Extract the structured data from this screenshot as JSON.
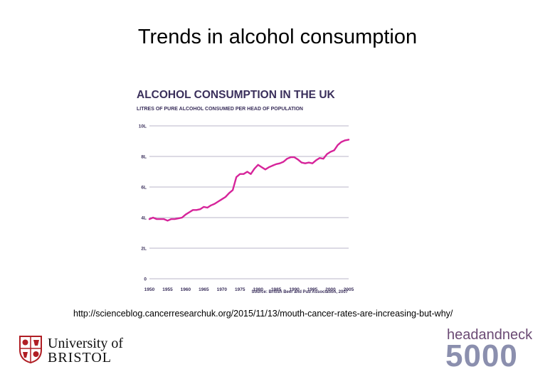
{
  "slide": {
    "title": "Trends in alcohol consumption",
    "url": "http://scienceblog.cancerresearchuk.org/2015/11/13/mouth-cancer-rates-are-increasing-but-why/"
  },
  "logos": {
    "bristol_line1": "University of",
    "bristol_line2": "BRISTOL",
    "hn_line1": "headandneck",
    "hn_line2": "5000"
  },
  "colors": {
    "line": "#d6249a",
    "title": "#3a2f5b",
    "grid": "#b8b4c8",
    "hn_purple": "#6b4a74",
    "hn_grey": "#8b8fae"
  },
  "chart_data": {
    "type": "line",
    "title": "ALCOHOL CONSUMPTION IN THE UK",
    "subtitle": "LITRES OF PURE ALCOHOL CONSUMED PER HEAD OF POPULATION",
    "source": "Source: British Beer and Pub Association, 2007",
    "xlabel": "",
    "ylabel": "",
    "xlim": [
      1950,
      2005
    ],
    "ylim": [
      0,
      10
    ],
    "y_ticks": [
      0,
      2,
      4,
      6,
      8,
      10
    ],
    "y_tick_labels": [
      "0",
      "2L",
      "4L",
      "6L",
      "8L",
      "10L"
    ],
    "x_ticks": [
      1950,
      1955,
      1960,
      1965,
      1970,
      1975,
      1980,
      1985,
      1990,
      1995,
      2000,
      2005
    ],
    "x_tick_labels": [
      "1950",
      "1955",
      "1960",
      "1965",
      "1970",
      "1975",
      "1980",
      "1985",
      "1990",
      "1995",
      "2000",
      "2005"
    ],
    "grid": true,
    "series": [
      {
        "x": [
          1950,
          1951,
          1952,
          1953,
          1954,
          1955,
          1956,
          1957,
          1958,
          1959,
          1960,
          1961,
          1962,
          1963,
          1964,
          1965,
          1966,
          1967,
          1968,
          1969,
          1970,
          1971,
          1972,
          1973,
          1974,
          1975,
          1976,
          1977,
          1978,
          1979,
          1980,
          1981,
          1982,
          1983,
          1984,
          1985,
          1986,
          1987,
          1988,
          1989,
          1990,
          1991,
          1992,
          1993,
          1994,
          1995,
          1996,
          1997,
          1998,
          1999,
          2000,
          2001,
          2002,
          2003,
          2004,
          2005
        ],
        "values": [
          3.9,
          4.0,
          3.9,
          3.9,
          3.9,
          3.8,
          3.9,
          3.9,
          3.95,
          4.0,
          4.2,
          4.35,
          4.5,
          4.5,
          4.55,
          4.7,
          4.65,
          4.8,
          4.9,
          5.05,
          5.2,
          5.35,
          5.6,
          5.8,
          6.65,
          6.85,
          6.85,
          7.0,
          6.85,
          7.2,
          7.45,
          7.3,
          7.15,
          7.3,
          7.4,
          7.5,
          7.55,
          7.65,
          7.85,
          7.95,
          7.95,
          7.8,
          7.6,
          7.55,
          7.6,
          7.55,
          7.75,
          7.9,
          7.85,
          8.15,
          8.3,
          8.4,
          8.75,
          8.95,
          9.05,
          9.1
        ]
      }
    ]
  }
}
